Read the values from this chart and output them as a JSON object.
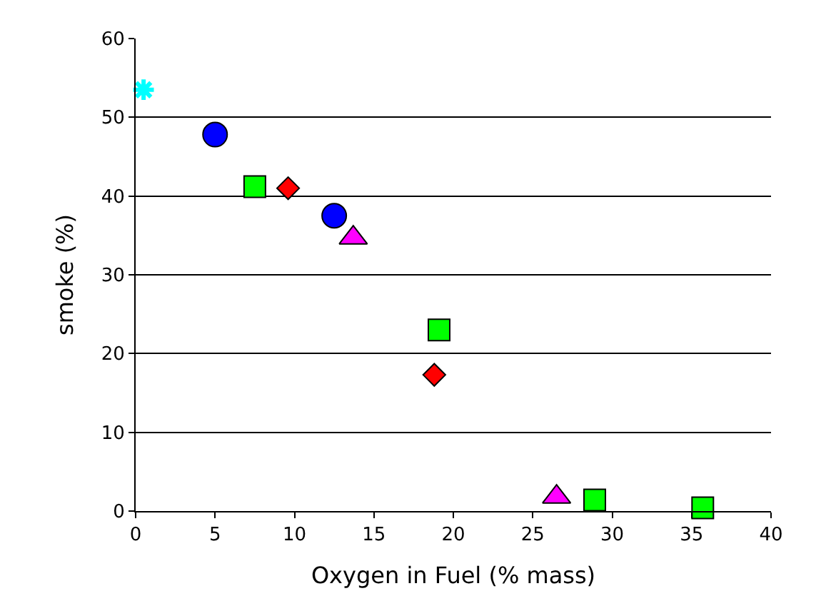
{
  "chart_data": {
    "type": "scatter",
    "xlabel": "Oxygen in Fuel (% mass)",
    "ylabel": "smoke (%)",
    "xlim": [
      0,
      40
    ],
    "xticks": [
      0,
      5,
      10,
      15,
      20,
      25,
      30,
      35,
      40
    ],
    "ylim": [
      0,
      60
    ],
    "yticks": [
      0,
      10,
      20,
      30,
      40,
      50,
      60
    ],
    "grid": "y",
    "series": [
      {
        "color": "#00ffff",
        "marker": "cross",
        "x": [
          0.5
        ],
        "values": [
          53.5
        ]
      },
      {
        "color": "#0000ff",
        "marker": "circle",
        "x": [
          5.0,
          12.5
        ],
        "values": [
          47.8,
          37.5
        ]
      },
      {
        "color": "#00ff00",
        "marker": "square",
        "x": [
          7.5,
          19.1,
          28.9,
          35.7
        ],
        "values": [
          41.2,
          23.0,
          1.4,
          0.4
        ]
      },
      {
        "color": "#ff0000",
        "marker": "diamond",
        "x": [
          9.6,
          18.8
        ],
        "values": [
          41.0,
          17.3
        ]
      },
      {
        "color": "#ff00ff",
        "marker": "triangle",
        "x": [
          13.7,
          26.5
        ],
        "values": [
          34.7,
          1.8
        ]
      }
    ]
  }
}
